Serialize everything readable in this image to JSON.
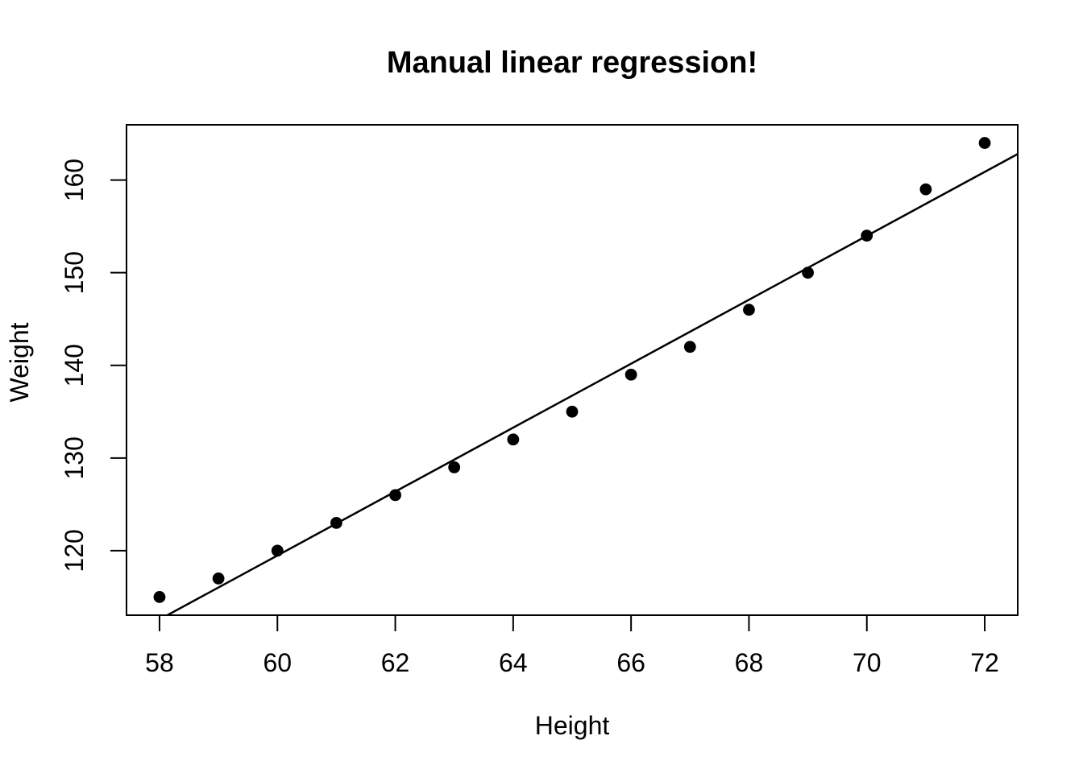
{
  "chart_data": {
    "type": "scatter",
    "title": "Manual linear regression!",
    "xlabel": "Height",
    "ylabel": "Weight",
    "x": [
      58,
      59,
      60,
      61,
      62,
      63,
      64,
      65,
      66,
      67,
      68,
      69,
      70,
      71,
      72
    ],
    "y": [
      115,
      117,
      120,
      123,
      126,
      129,
      132,
      135,
      139,
      142,
      146,
      150,
      154,
      159,
      164
    ],
    "x_ticks": [
      58,
      60,
      62,
      64,
      66,
      68,
      70,
      72
    ],
    "y_ticks": [
      120,
      130,
      140,
      150,
      160
    ],
    "xlim": [
      57.44,
      72.56
    ],
    "ylim": [
      113.04,
      165.96
    ],
    "regression_line": {
      "slope": 3.45,
      "intercept": -87.52
    },
    "grid": false,
    "legend": "none",
    "colors": {
      "background": "#ffffff",
      "foreground": "#000000",
      "point": "#000000",
      "line": "#000000"
    }
  }
}
